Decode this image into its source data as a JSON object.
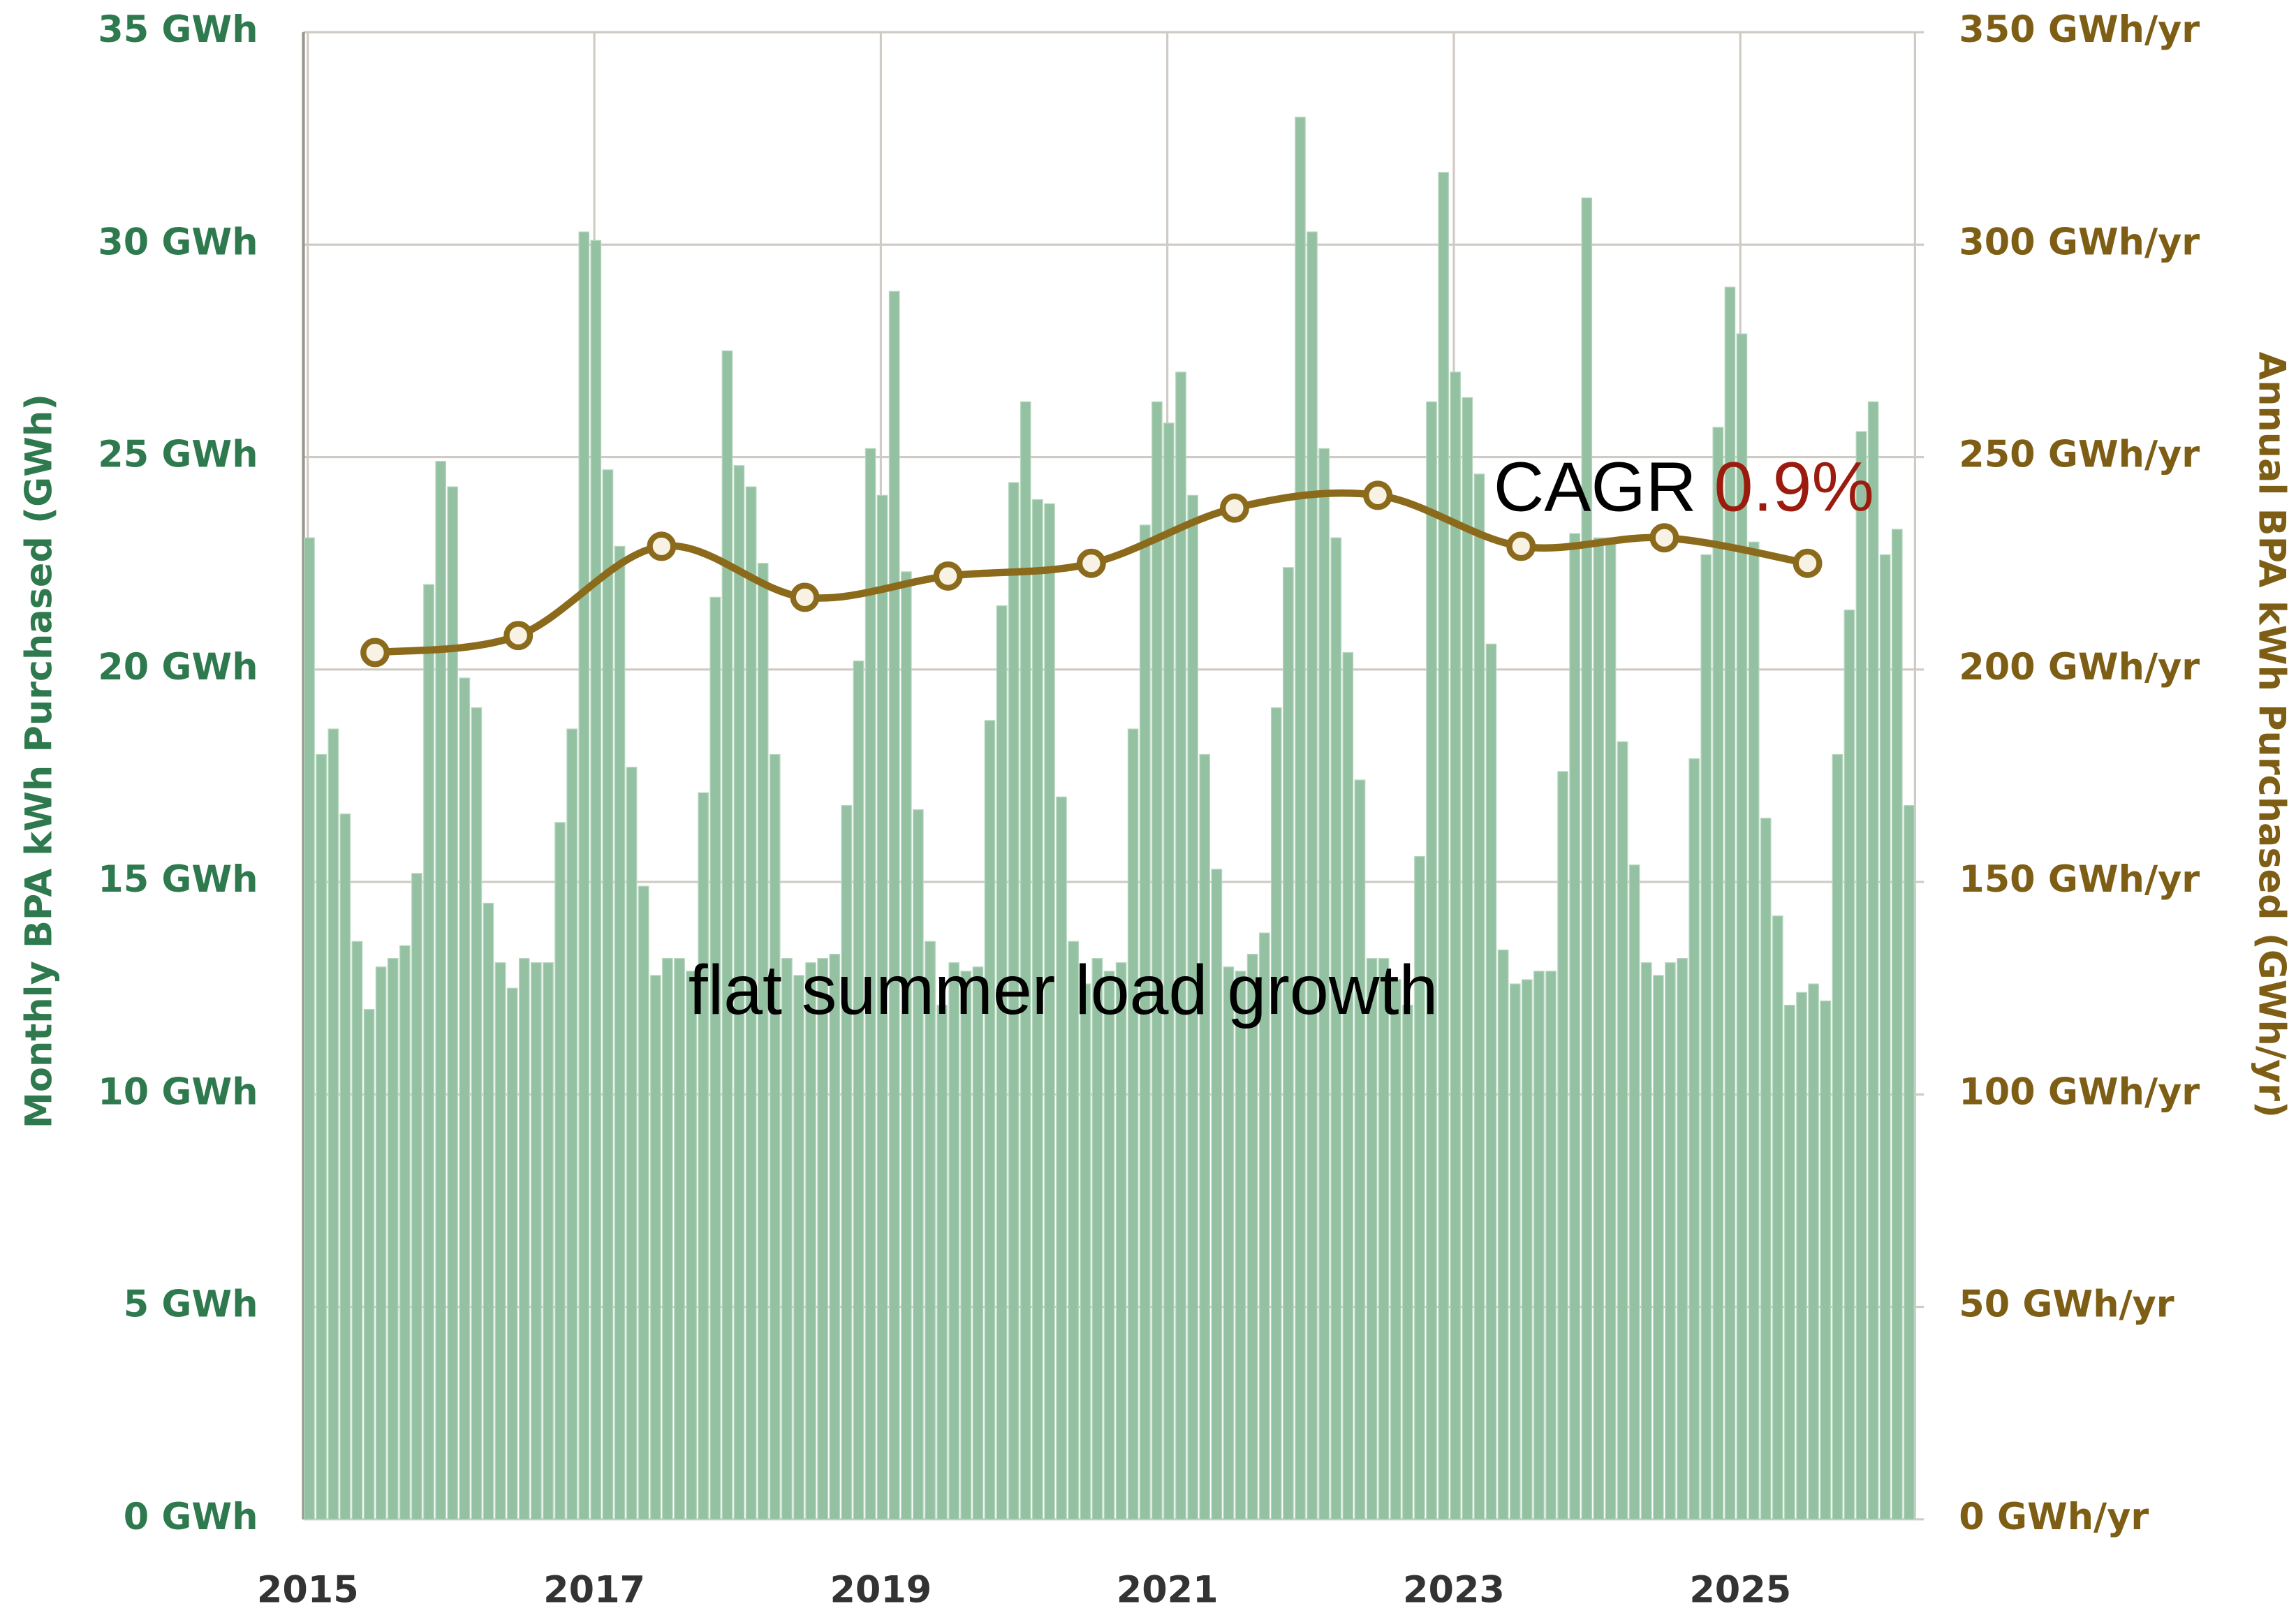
{
  "chart_data": {
    "type": "bar",
    "ylabel": "Monthly BPA kWh Purchased (GWh)",
    "y2label": "Annual BPA kWh Purchased (GWh/yr)",
    "annotations": {
      "cagr_label": "CAGR",
      "cagr_value": "0.9%",
      "summer_note": "flat summer load growth"
    },
    "xlim": [
      2015,
      2026.25
    ],
    "xticks": [
      2015,
      2017,
      2019,
      2021,
      2023,
      2025
    ],
    "ylim": [
      0,
      35
    ],
    "yticks": [
      {
        "value": 0,
        "label": "0 GWh"
      },
      {
        "value": 5,
        "label": "5 GWh"
      },
      {
        "value": 10,
        "label": "10 GWh"
      },
      {
        "value": 15,
        "label": "15 GWh"
      },
      {
        "value": 20,
        "label": "20 GWh"
      },
      {
        "value": 25,
        "label": "25 GWh"
      },
      {
        "value": 30,
        "label": "30 GWh"
      },
      {
        "value": 35,
        "label": "35 GWh"
      }
    ],
    "y2lim": [
      0,
      350
    ],
    "y2ticks": [
      {
        "value": 0,
        "label": "0 GWh/yr"
      },
      {
        "value": 50,
        "label": "50 GWh/yr"
      },
      {
        "value": 100,
        "label": "100 GWh/yr"
      },
      {
        "value": 150,
        "label": "150 GWh/yr"
      },
      {
        "value": 200,
        "label": "200 GWh/yr"
      },
      {
        "value": 250,
        "label": "250 GWh/yr"
      },
      {
        "value": 300,
        "label": "300 GWh/yr"
      },
      {
        "value": 350,
        "label": "350 GWh/yr"
      }
    ],
    "grid": true,
    "series": [
      {
        "type": "bar",
        "color": "#93c1a1",
        "x": [
          2015.0,
          2015.083,
          2015.167,
          2015.25,
          2015.333,
          2015.417,
          2015.5,
          2015.583,
          2015.667,
          2015.75,
          2015.833,
          2015.917,
          2016.0,
          2016.083,
          2016.167,
          2016.25,
          2016.333,
          2016.417,
          2016.5,
          2016.583,
          2016.667,
          2016.75,
          2016.833,
          2016.917,
          2017.0,
          2017.083,
          2017.167,
          2017.25,
          2017.333,
          2017.417,
          2017.5,
          2017.583,
          2017.667,
          2017.75,
          2017.833,
          2017.917,
          2018.0,
          2018.083,
          2018.167,
          2018.25,
          2018.333,
          2018.417,
          2018.5,
          2018.583,
          2018.667,
          2018.75,
          2018.833,
          2018.917,
          2019.0,
          2019.083,
          2019.167,
          2019.25,
          2019.333,
          2019.417,
          2019.5,
          2019.583,
          2019.667,
          2019.75,
          2019.833,
          2019.917,
          2020.0,
          2020.083,
          2020.167,
          2020.25,
          2020.333,
          2020.417,
          2020.5,
          2020.583,
          2020.667,
          2020.75,
          2020.833,
          2020.917,
          2021.0,
          2021.083,
          2021.167,
          2021.25,
          2021.333,
          2021.417,
          2021.5,
          2021.583,
          2021.667,
          2021.75,
          2021.833,
          2021.917,
          2022.0,
          2022.083,
          2022.167,
          2022.25,
          2022.333,
          2022.417,
          2022.5,
          2022.583,
          2022.667,
          2022.75,
          2022.833,
          2022.917,
          2023.0,
          2023.083,
          2023.167,
          2023.25,
          2023.333,
          2023.417,
          2023.5,
          2023.583,
          2023.667,
          2023.75,
          2023.833,
          2023.917,
          2024.0,
          2024.083,
          2024.167,
          2024.25,
          2024.333,
          2024.417,
          2024.5,
          2024.583,
          2024.667,
          2024.75,
          2024.833,
          2024.917,
          2025.0,
          2025.083,
          2025.167,
          2025.25,
          2025.333,
          2025.417,
          2025.5,
          2025.583,
          2025.667,
          2025.75,
          2025.833,
          2025.917,
          2026.0,
          2026.083,
          2026.167
        ],
        "values": [
          23.1,
          18.0,
          18.6,
          16.6,
          13.6,
          12.0,
          13.0,
          13.2,
          13.5,
          15.2,
          22.0,
          24.9,
          24.3,
          19.8,
          19.1,
          14.5,
          13.1,
          12.5,
          13.2,
          13.1,
          13.1,
          16.4,
          18.6,
          30.3,
          30.1,
          24.7,
          22.9,
          17.7,
          14.9,
          12.8,
          13.2,
          13.2,
          12.9,
          17.1,
          21.7,
          27.5,
          24.8,
          24.3,
          22.5,
          18.0,
          13.2,
          12.8,
          13.1,
          13.2,
          13.3,
          16.8,
          20.2,
          25.2,
          24.1,
          28.9,
          22.3,
          16.7,
          13.6,
          12.1,
          13.1,
          12.9,
          13.0,
          18.8,
          21.5,
          24.4,
          26.3,
          24.0,
          23.9,
          17.0,
          13.6,
          12.6,
          13.2,
          12.9,
          13.1,
          18.6,
          23.4,
          26.3,
          25.8,
          27.0,
          24.1,
          18.0,
          15.3,
          13.0,
          12.9,
          13.3,
          13.8,
          19.1,
          22.4,
          33.0,
          30.3,
          25.2,
          23.1,
          20.4,
          17.4,
          13.2,
          13.2,
          12.7,
          12.1,
          15.6,
          26.3,
          31.7,
          27.0,
          26.4,
          24.6,
          20.6,
          13.4,
          12.6,
          12.7,
          12.9,
          12.9,
          17.6,
          23.2,
          31.1,
          23.1,
          23.1,
          18.3,
          15.4,
          13.1,
          12.8,
          13.1,
          13.2,
          17.9,
          22.7,
          25.7,
          29.0,
          27.9,
          23.0,
          16.5,
          14.2,
          12.1,
          12.4,
          12.6,
          12.2,
          18.0,
          21.4,
          25.6,
          26.3,
          22.7,
          23.3,
          16.8
        ]
      },
      {
        "type": "line",
        "axis": "y2",
        "color": "#8b6a1c",
        "x": [
          2015.5,
          2016.5,
          2017.5,
          2018.5,
          2019.5,
          2020.5,
          2021.5,
          2022.5,
          2023.5,
          2024.5,
          2025.5
        ],
        "values": [
          204,
          208,
          229,
          217,
          222,
          225,
          238,
          241,
          229,
          231,
          225
        ]
      }
    ]
  }
}
